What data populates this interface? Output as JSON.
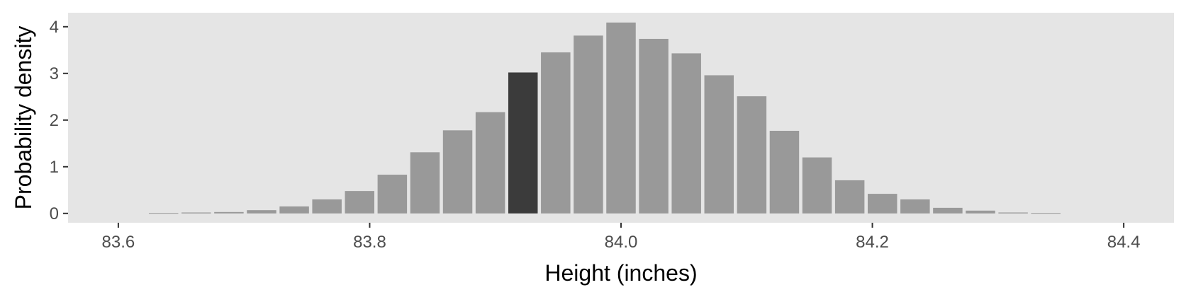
{
  "chart_data": {
    "type": "bar",
    "title": "",
    "xlabel": "Height (inches)",
    "ylabel": "Probability density",
    "xlim": [
      83.56,
      84.44
    ],
    "ylim": [
      -0.2,
      4.3
    ],
    "x_ticks": [
      83.6,
      83.8,
      84.0,
      84.2,
      84.4
    ],
    "x_tick_labels": [
      "83.6",
      "83.8",
      "84.0",
      "84.2",
      "84.4"
    ],
    "y_ticks": [
      0,
      1,
      2,
      3,
      4
    ],
    "y_tick_labels": [
      "0",
      "1",
      "2",
      "3",
      "4"
    ],
    "bin_width": 0.026,
    "grid": false,
    "legend": "none",
    "colors": {
      "panel_background": "#e5e5e5",
      "bar_default": "#999999",
      "bar_highlight": "#3b3b3b",
      "tick_mark": "#333333"
    },
    "highlighted_bin_center": 83.922,
    "x": [
      83.636,
      83.662,
      83.688,
      83.714,
      83.74,
      83.766,
      83.792,
      83.818,
      83.844,
      83.87,
      83.896,
      83.922,
      83.948,
      83.974,
      84.0,
      84.026,
      84.052,
      84.078,
      84.104,
      84.13,
      84.156,
      84.182,
      84.208,
      84.234,
      84.26,
      84.286,
      84.312,
      84.338
    ],
    "values": [
      0.01,
      0.02,
      0.03,
      0.07,
      0.15,
      0.3,
      0.48,
      0.83,
      1.31,
      1.78,
      2.17,
      3.02,
      3.45,
      3.81,
      4.09,
      3.74,
      3.43,
      2.96,
      2.51,
      1.77,
      1.2,
      0.71,
      0.42,
      0.3,
      0.12,
      0.06,
      0.02,
      0.01
    ]
  }
}
